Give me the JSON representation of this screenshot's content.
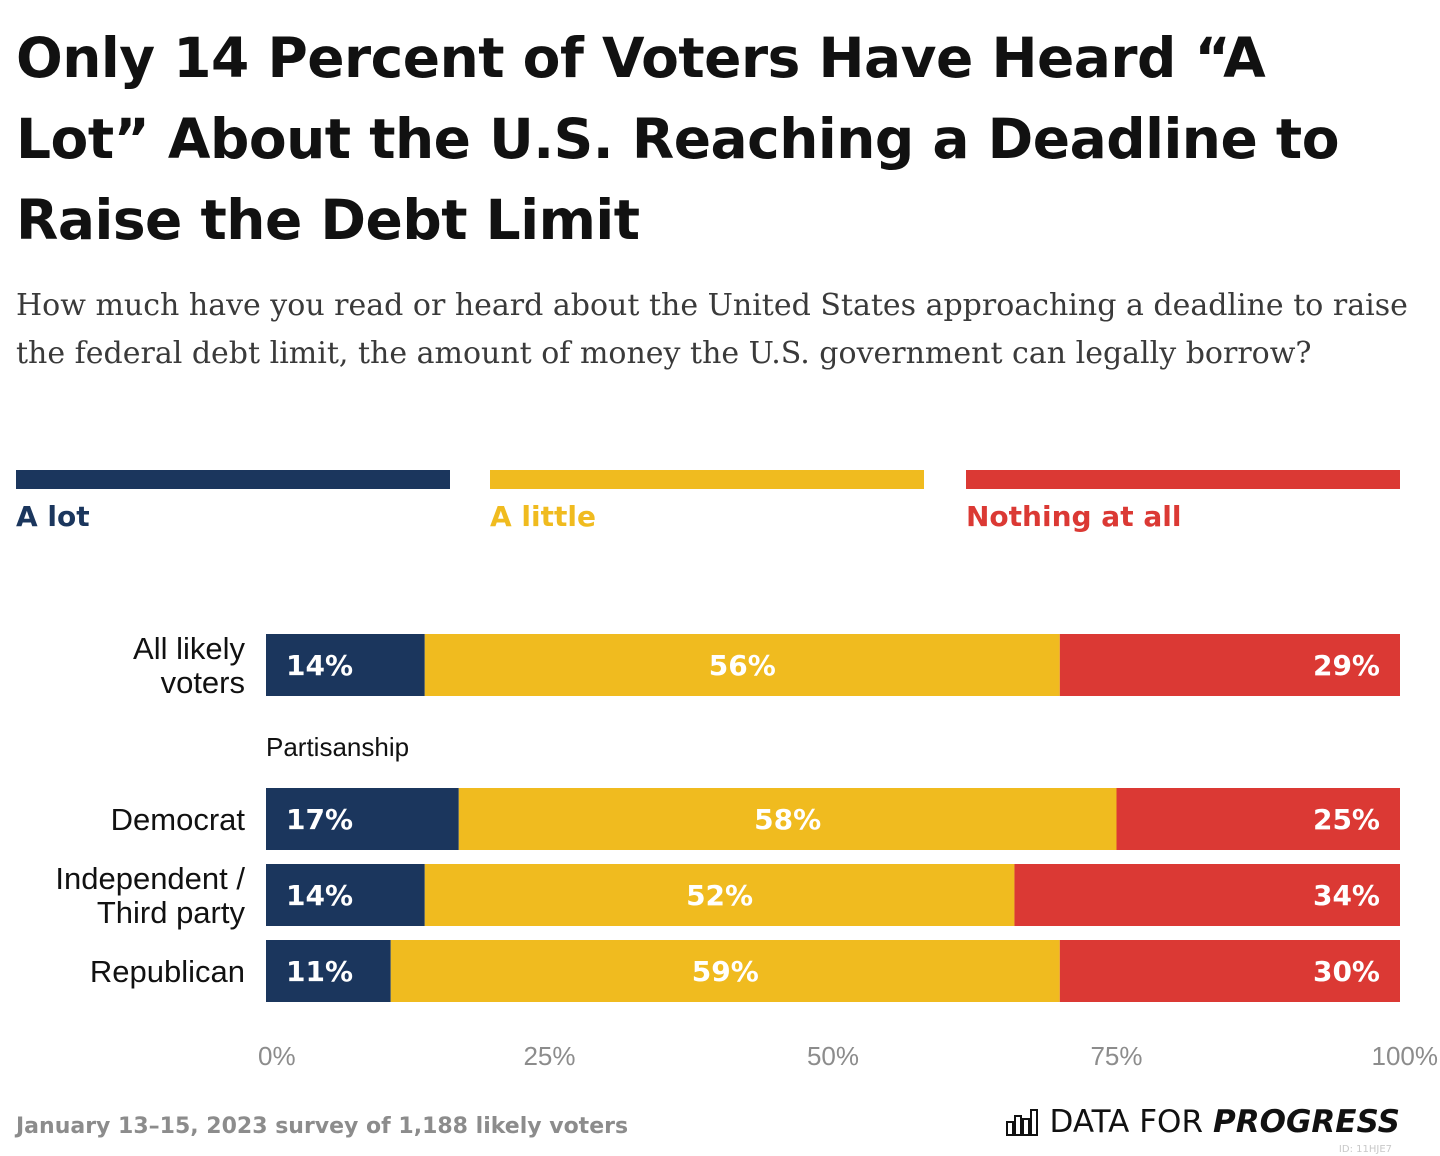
{
  "title": "Only 14 Percent of Voters Have Heard “A Lot” About the U.S. Reaching a Deadline to Raise the Debt Limit",
  "subtitle": "How much have you read or heard about the United States approaching a deadline to raise the federal debt limit, the amount of money the U.S. government can legally borrow?",
  "footer": {
    "note": "January 13–15, 2023 survey of 1,188 likely voters",
    "brand_prefix": "DATA FOR",
    "brand_strong": "PROGRESS",
    "brand_icon": "bar-chart-logo-icon",
    "chart_id": "ID: 11HJE7"
  },
  "chart_data": {
    "type": "bar",
    "orientation": "horizontal",
    "stacked": true,
    "title": "Only 14 Percent of Voters Have Heard “A Lot” About the U.S. Reaching a Deadline to Raise the Debt Limit",
    "xlabel": "",
    "ylabel": "",
    "xlim": [
      0,
      100
    ],
    "x_ticks": [
      "0%",
      "25%",
      "50%",
      "75%",
      "100%"
    ],
    "x_tick_values": [
      0,
      25,
      50,
      75,
      100
    ],
    "grid": false,
    "legend_position": "top",
    "series": [
      {
        "name": "A lot",
        "color": "#1b365d"
      },
      {
        "name": "A little",
        "color": "#f0bb1f"
      },
      {
        "name": "Nothing at all",
        "color": "#db3934"
      }
    ],
    "rows": [
      {
        "label": "All likely voters",
        "label_lines": [
          "All likely",
          "voters"
        ],
        "values": [
          14,
          56,
          29
        ],
        "labels": [
          "14%",
          "56%",
          "29%"
        ]
      },
      {
        "group_header": "Partisanship"
      },
      {
        "label": "Democrat",
        "label_lines": [
          "Democrat"
        ],
        "values": [
          17,
          58,
          25
        ],
        "labels": [
          "17%",
          "58%",
          "25%"
        ]
      },
      {
        "label": "Independent / Third party",
        "label_lines": [
          "Independent /",
          "Third party"
        ],
        "values": [
          14,
          52,
          34
        ],
        "labels": [
          "14%",
          "52%",
          "34%"
        ]
      },
      {
        "label": "Republican",
        "label_lines": [
          "Republican"
        ],
        "values": [
          11,
          59,
          30
        ],
        "labels": [
          "11%",
          "59%",
          "30%"
        ]
      }
    ]
  }
}
